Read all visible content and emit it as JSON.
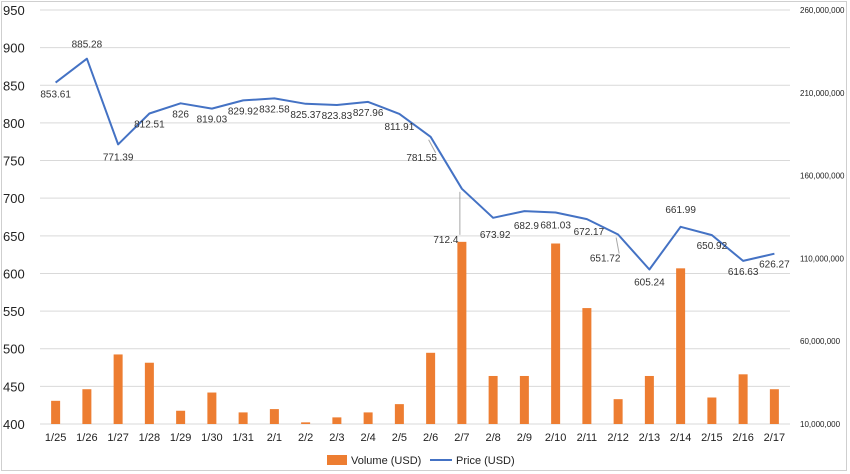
{
  "chart_data": {
    "type": "bar+line",
    "title": "",
    "categories": [
      "1/25",
      "1/26",
      "1/27",
      "1/28",
      "1/29",
      "1/30",
      "1/31",
      "2/1",
      "2/2",
      "2/3",
      "2/4",
      "2/5",
      "2/6",
      "2/7",
      "2/8",
      "2/9",
      "2/10",
      "2/11",
      "2/12",
      "2/13",
      "2/14",
      "2/15",
      "2/16",
      "2/17"
    ],
    "series": [
      {
        "name": "Volume (USD)",
        "type": "bar",
        "axis": "right",
        "color": "#ED7D31",
        "values": [
          24000000,
          31000000,
          52000000,
          47000000,
          18000000,
          29000000,
          17000000,
          19000000,
          11000000,
          14000000,
          17000000,
          22000000,
          53000000,
          120000000,
          39000000,
          39000000,
          119000000,
          80000000,
          25000000,
          39000000,
          104000000,
          26000000,
          40000000,
          31000000
        ]
      },
      {
        "name": "Price (USD)",
        "type": "line",
        "axis": "left",
        "color": "#4472C4",
        "values": [
          853.61,
          885.28,
          771.39,
          812.51,
          826,
          819.03,
          829.92,
          832.58,
          825.37,
          823.83,
          827.96,
          811.91,
          781.55,
          712.4,
          673.92,
          682.9,
          681.03,
          672.17,
          651.72,
          605.24,
          661.99,
          650.92,
          616.63,
          626.27
        ],
        "labels": [
          "853.61",
          "885.28",
          "771.39",
          "812.51",
          "826",
          "819.03",
          "829.92",
          "832.58",
          "825.37",
          "823.83",
          "827.96",
          "811.91",
          "781.55",
          "712.4",
          "673.92",
          "682.9",
          "681.03",
          "672.17",
          "651.72",
          "605.24",
          "661.99",
          "650.92",
          "616.63",
          "626.27"
        ]
      }
    ],
    "y_left": {
      "min": 400,
      "max": 950,
      "ticks": [
        "400",
        "450",
        "500",
        "550",
        "600",
        "650",
        "700",
        "750",
        "800",
        "850",
        "900",
        "950"
      ]
    },
    "y_right": {
      "min": 10000000,
      "max": 260000000,
      "ticks": [
        "10,000,000",
        "60,000,000",
        "110,000,000",
        "160,000,000",
        "210,000,000",
        "260,000,000"
      ]
    },
    "legend": {
      "position": "bottom",
      "items": [
        "Volume (USD)",
        "Price (USD)"
      ]
    }
  }
}
